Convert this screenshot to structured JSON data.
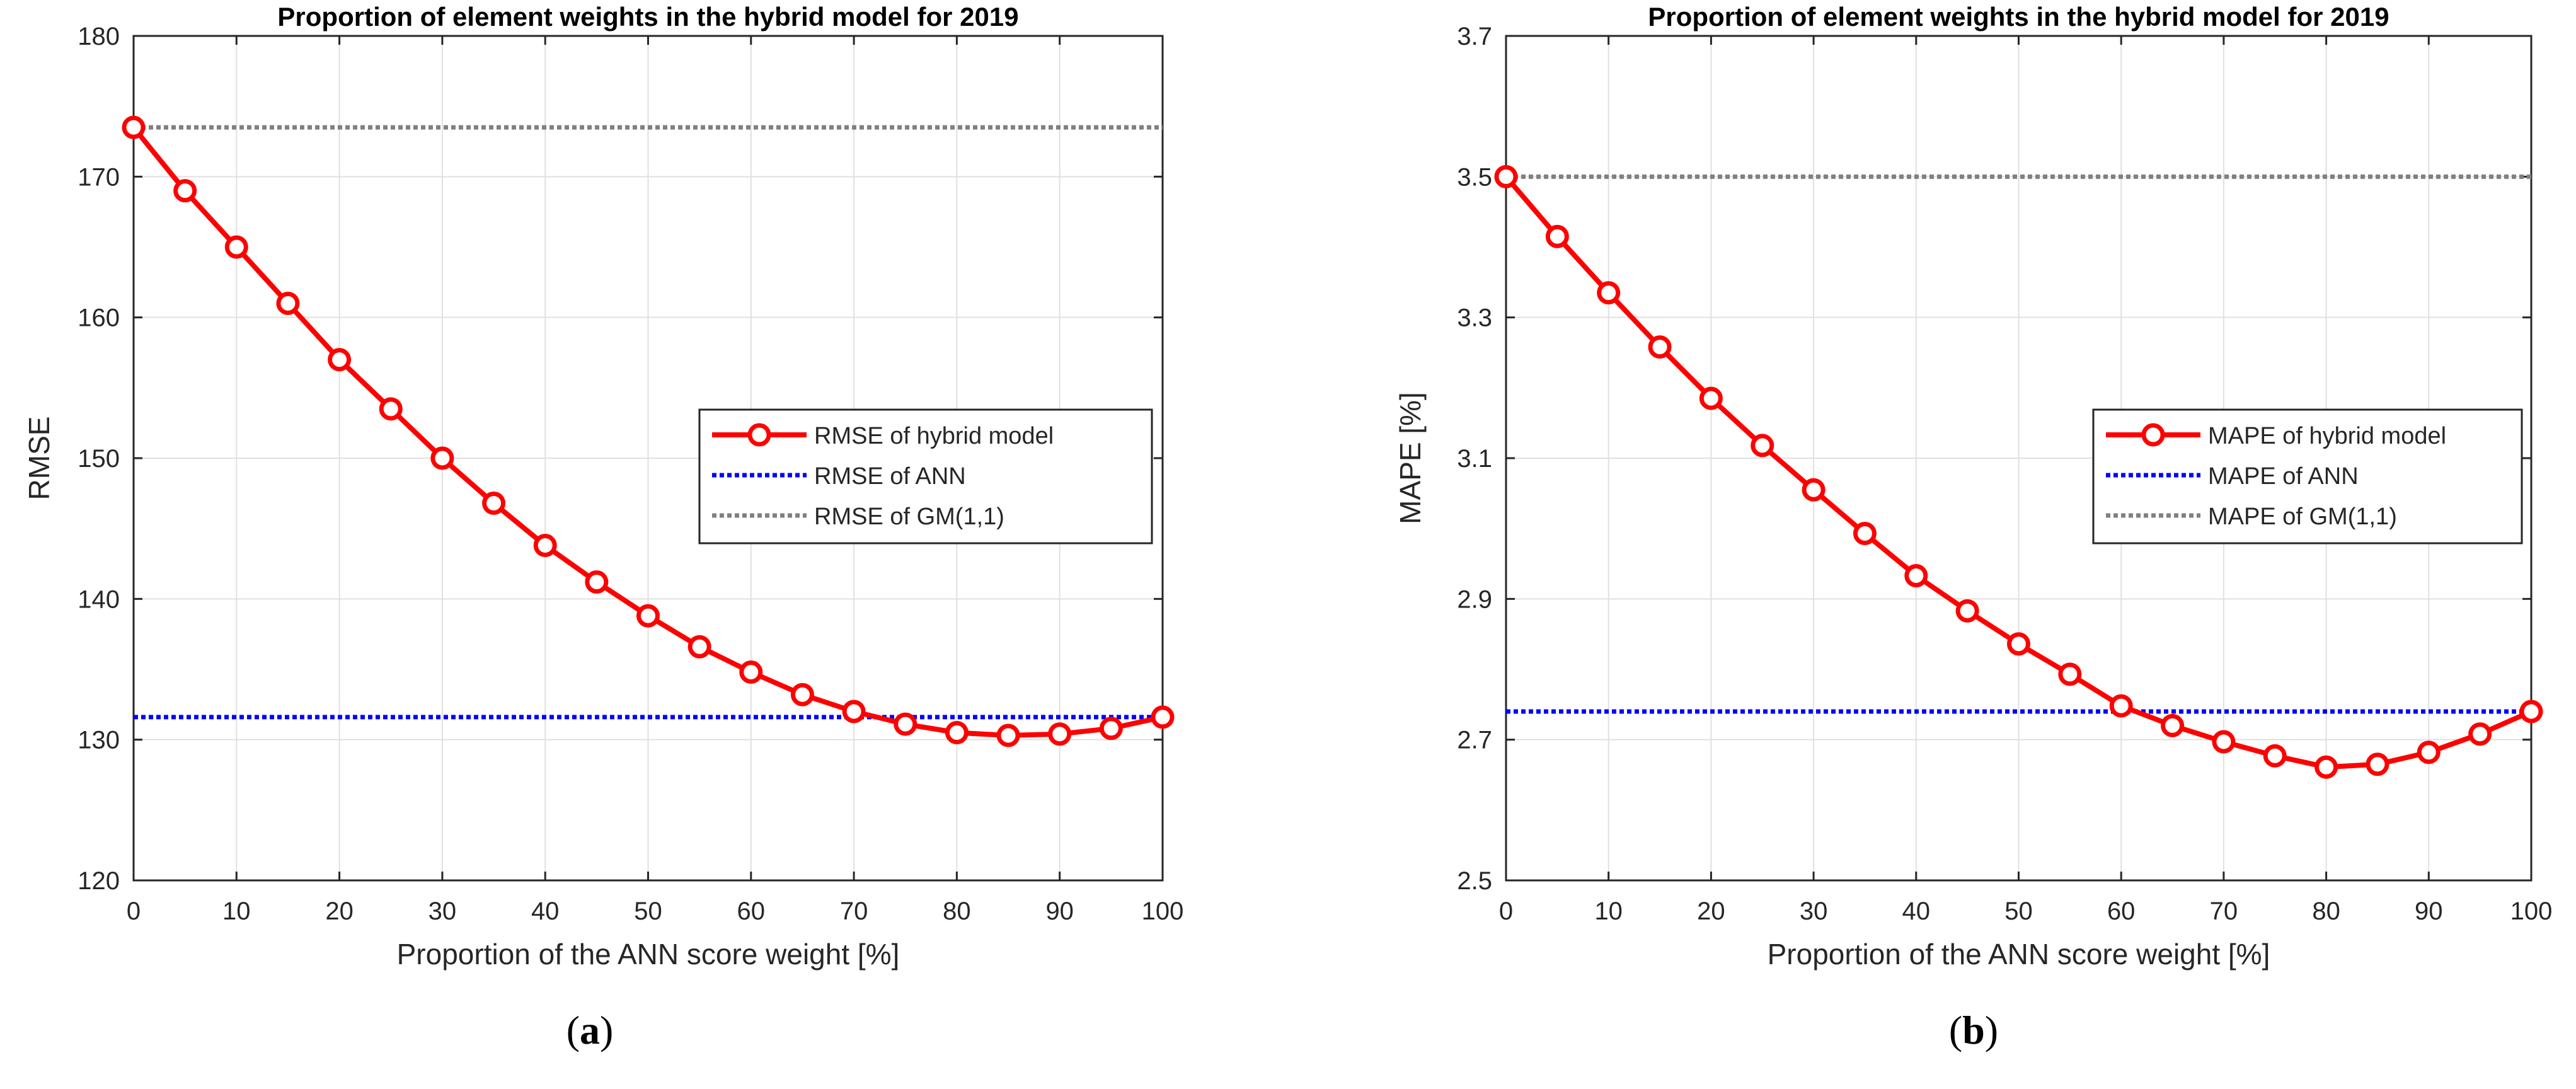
{
  "chart_data": [
    {
      "type": "line",
      "title": "Proportion of element weights in the hybrid model for 2019",
      "xlabel": "Proportion of the ANN score weight [%]",
      "ylabel": "RMSE",
      "xlim": [
        0,
        100
      ],
      "ylim": [
        120,
        180
      ],
      "xticks": [
        0,
        10,
        20,
        30,
        40,
        50,
        60,
        70,
        80,
        90,
        100
      ],
      "yticks": [
        120,
        130,
        140,
        150,
        160,
        170,
        180
      ],
      "ytick_labels": [
        "120",
        "130",
        "140",
        "150",
        "160",
        "170",
        "180"
      ],
      "grid": true,
      "legend_position": "center-right",
      "x": [
        0,
        5,
        10,
        15,
        20,
        25,
        30,
        35,
        40,
        45,
        50,
        55,
        60,
        65,
        70,
        75,
        80,
        85,
        90,
        95,
        100
      ],
      "series": [
        {
          "name": "RMSE of hybrid model",
          "style": "solid-marker",
          "color": "#ff0000",
          "values": [
            173.5,
            169.0,
            165.0,
            161.0,
            157.0,
            153.5,
            150.0,
            146.8,
            143.8,
            141.2,
            138.8,
            136.6,
            134.8,
            133.2,
            132.0,
            131.1,
            130.5,
            130.3,
            130.4,
            130.8,
            131.6
          ]
        },
        {
          "name": "RMSE of ANN",
          "style": "dotted",
          "color": "#0000ff",
          "constant": 131.6
        },
        {
          "name": "RMSE of GM(1,1)",
          "style": "dotted",
          "color": "#808080",
          "constant": 173.5
        }
      ],
      "caption_label": "a"
    },
    {
      "type": "line",
      "title": "Proportion of element weights in the hybrid model for 2019",
      "xlabel": "Proportion of the ANN score weight [%]",
      "ylabel": "MAPE [%]",
      "xlim": [
        0,
        100
      ],
      "ylim": [
        2.5,
        3.7
      ],
      "xticks": [
        0,
        10,
        20,
        30,
        40,
        50,
        60,
        70,
        80,
        90,
        100
      ],
      "yticks": [
        2.5,
        2.7,
        2.9,
        3.1,
        3.3,
        3.5,
        3.7
      ],
      "ytick_labels": [
        "2.5",
        "2.7",
        "2.9",
        "3.1",
        "3.3",
        "3.5",
        "3.7"
      ],
      "grid": true,
      "legend_position": "center-right",
      "x": [
        0,
        5,
        10,
        15,
        20,
        25,
        30,
        35,
        40,
        45,
        50,
        55,
        60,
        65,
        70,
        75,
        80,
        85,
        90,
        95,
        100
      ],
      "series": [
        {
          "name": "MAPE of hybrid model",
          "style": "solid-marker",
          "color": "#ff0000",
          "values": [
            3.5,
            3.415,
            3.335,
            3.258,
            3.185,
            3.118,
            3.055,
            2.993,
            2.933,
            2.883,
            2.836,
            2.793,
            2.748,
            2.72,
            2.697,
            2.677,
            2.661,
            2.665,
            2.682,
            2.708,
            2.74
          ]
        },
        {
          "name": "MAPE of ANN",
          "style": "dotted",
          "color": "#0000ff",
          "constant": 2.74
        },
        {
          "name": "MAPE of GM(1,1)",
          "style": "dotted",
          "color": "#808080",
          "constant": 3.5
        }
      ],
      "caption_label": "b"
    }
  ]
}
